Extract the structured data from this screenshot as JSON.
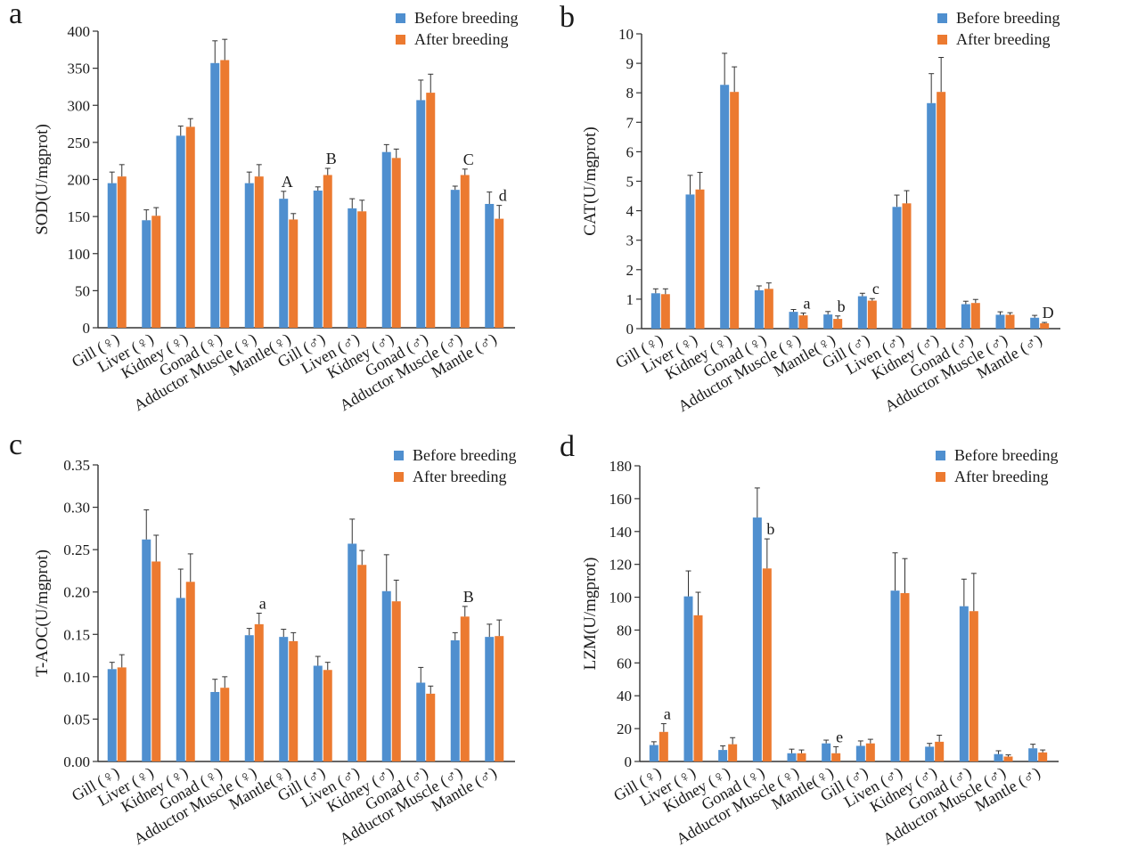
{
  "colors": {
    "before": "#4f8fcf",
    "after": "#ec7a30",
    "axis": "#333333",
    "error": "#333333"
  },
  "chart_data": [
    {
      "type": "bar",
      "panel_label": "a",
      "ylabel": "SOD(U/mgprot)",
      "ylim": [
        0,
        400
      ],
      "ticks": [
        0,
        50,
        100,
        150,
        200,
        250,
        300,
        350,
        400
      ],
      "tick_labels": [
        "0",
        "50",
        "100",
        "150",
        "200",
        "250",
        "300",
        "350",
        "400"
      ],
      "categories": [
        "Gill (♀)",
        "Liver (♀)",
        "Kidney (♀)",
        "Gonad (♀)",
        "Adductor Muscle (♀)",
        "Mantle(♀)",
        "Gill (♂)",
        "Liven (♂)",
        "Kidney (♂)",
        "Gonad (♂)",
        "Adductor Muscle (♂)",
        "Mantle (♂)"
      ],
      "legend": {
        "position": "top-right"
      },
      "series": [
        {
          "name": "Before breeding",
          "values": [
            195,
            145,
            259,
            357,
            195,
            174,
            185,
            161,
            237,
            307,
            186,
            167
          ],
          "errors": [
            15,
            14,
            13,
            30,
            15,
            10,
            5,
            13,
            10,
            27,
            5,
            16
          ]
        },
        {
          "name": "After breeding",
          "values": [
            204,
            151,
            271,
            361,
            204,
            146,
            206,
            157,
            229,
            317,
            206,
            147
          ],
          "errors": [
            16,
            11,
            11,
            28,
            16,
            8,
            9,
            15,
            12,
            25,
            8,
            18
          ]
        }
      ],
      "annotations": [
        {
          "text": "A",
          "category_index": 5,
          "series_index": 0
        },
        {
          "text": "B",
          "category_index": 6,
          "series_index": 1
        },
        {
          "text": "C",
          "category_index": 10,
          "series_index": 1
        },
        {
          "text": "d",
          "category_index": 11,
          "series_index": 1
        }
      ]
    },
    {
      "type": "bar",
      "panel_label": "b",
      "ylabel": "CAT(U/mgprot)",
      "ylim": [
        0,
        10
      ],
      "ticks": [
        0,
        1,
        2,
        3,
        4,
        5,
        6,
        7,
        8,
        9,
        10
      ],
      "tick_labels": [
        "0",
        "1",
        "2",
        "3",
        "4",
        "5",
        "6",
        "7",
        "8",
        "9",
        "10"
      ],
      "categories": [
        "Gill (♀)",
        "Liver (♀)",
        "Kidney (♀)",
        "Gonad (♀)",
        "Adductor Muscle (♀)",
        "Mantle(♀)",
        "Gill (♂)",
        "Liven (♂)",
        "Kidney (♂)",
        "Gonad (♂)",
        "Adductor Muscle (♂)",
        "Mantle (♂)"
      ],
      "legend": {
        "position": "top-right"
      },
      "series": [
        {
          "name": "Before breeding",
          "values": [
            1.2,
            4.55,
            8.27,
            1.3,
            0.57,
            0.48,
            1.1,
            4.13,
            7.65,
            0.83,
            0.47,
            0.37
          ],
          "errors": [
            0.15,
            0.65,
            1.07,
            0.15,
            0.08,
            0.1,
            0.1,
            0.4,
            1.0,
            0.1,
            0.1,
            0.08
          ]
        },
        {
          "name": "After breeding",
          "values": [
            1.17,
            4.72,
            8.03,
            1.35,
            0.45,
            0.33,
            0.95,
            4.25,
            8.03,
            0.87,
            0.47,
            0.18
          ],
          "errors": [
            0.18,
            0.58,
            0.85,
            0.2,
            0.08,
            0.1,
            0.07,
            0.43,
            1.17,
            0.12,
            0.07,
            0.03
          ]
        }
      ],
      "annotations": [
        {
          "text": "a",
          "category_index": 4,
          "series_index": 1
        },
        {
          "text": "b",
          "category_index": 5,
          "series_index": 1
        },
        {
          "text": "c",
          "category_index": 6,
          "series_index": 1
        },
        {
          "text": "D",
          "category_index": 11,
          "series_index": 1
        }
      ]
    },
    {
      "type": "bar",
      "panel_label": "c",
      "ylabel": "T-AOC(U/mgprot)",
      "ylim": [
        0,
        0.35
      ],
      "ticks": [
        0,
        0.05,
        0.1,
        0.15,
        0.2,
        0.25,
        0.3,
        0.35
      ],
      "tick_labels": [
        "0.00",
        "0.05",
        "0.10",
        "0.15",
        "0.20",
        "0.25",
        "0.30",
        "0.35"
      ],
      "categories": [
        "Gill (♀)",
        "Liver (♀)",
        "Kidney (♀)",
        "Gonad (♀)",
        "Adductor Muscle (♀)",
        "Mantle(♀)",
        "Gill (♂)",
        "Liven (♂)",
        "Kidney (♂)",
        "Gonad (♂)",
        "Adductor Muscle (♂)",
        "Mantle (♂)"
      ],
      "legend": {
        "position": "top-right"
      },
      "series": [
        {
          "name": "Before breeding",
          "values": [
            0.109,
            0.262,
            0.193,
            0.082,
            0.149,
            0.147,
            0.113,
            0.257,
            0.201,
            0.093,
            0.143,
            0.147
          ],
          "errors": [
            0.008,
            0.035,
            0.034,
            0.015,
            0.008,
            0.009,
            0.011,
            0.029,
            0.043,
            0.018,
            0.009,
            0.015
          ]
        },
        {
          "name": "After breeding",
          "values": [
            0.111,
            0.236,
            0.212,
            0.087,
            0.162,
            0.142,
            0.108,
            0.232,
            0.189,
            0.08,
            0.171,
            0.148
          ],
          "errors": [
            0.015,
            0.031,
            0.033,
            0.013,
            0.013,
            0.01,
            0.009,
            0.017,
            0.025,
            0.009,
            0.012,
            0.019
          ]
        }
      ],
      "annotations": [
        {
          "text": "a",
          "category_index": 4,
          "series_index": 1
        },
        {
          "text": "B",
          "category_index": 10,
          "series_index": 1
        }
      ]
    },
    {
      "type": "bar",
      "panel_label": "d",
      "ylabel": "LZM(U/mgprot)",
      "ylim": [
        0,
        180
      ],
      "ticks": [
        0,
        20,
        40,
        60,
        80,
        100,
        120,
        140,
        160,
        180
      ],
      "tick_labels": [
        "0",
        "20",
        "40",
        "60",
        "80",
        "100",
        "120",
        "140",
        "160",
        "180"
      ],
      "categories": [
        "Gill (♀)",
        "Liver (♀)",
        "Kidney (♀)",
        "Gonad (♀)",
        "Adductor Muscle (♀)",
        "Mantle(♀)",
        "Gill (♂)",
        "Liven (♂)",
        "Kidney (♂)",
        "Gonad (♂)",
        "Adductor Muscle (♂)",
        "Mantle (♂)"
      ],
      "legend": {
        "position": "top-right"
      },
      "series": [
        {
          "name": "Before breeding",
          "values": [
            10,
            100.5,
            7,
            148.5,
            5,
            11,
            9.5,
            104,
            9,
            94.5,
            4.5,
            8
          ],
          "errors": [
            2,
            15.5,
            2.5,
            18,
            2.5,
            2,
            3,
            23,
            2,
            16.5,
            2,
            2.5
          ]
        },
        {
          "name": "After breeding",
          "values": [
            18,
            89,
            10.5,
            117.5,
            5,
            5,
            11,
            102.5,
            12,
            91.5,
            3,
            5.5
          ],
          "errors": [
            5,
            14,
            4,
            18,
            2,
            4,
            2.5,
            21,
            4,
            23,
            1,
            1.5
          ]
        }
      ],
      "annotations": [
        {
          "text": "a",
          "category_index": 0,
          "series_index": 1
        },
        {
          "text": "b",
          "category_index": 3,
          "series_index": 1
        },
        {
          "text": "e",
          "category_index": 5,
          "series_index": 1
        }
      ]
    }
  ]
}
